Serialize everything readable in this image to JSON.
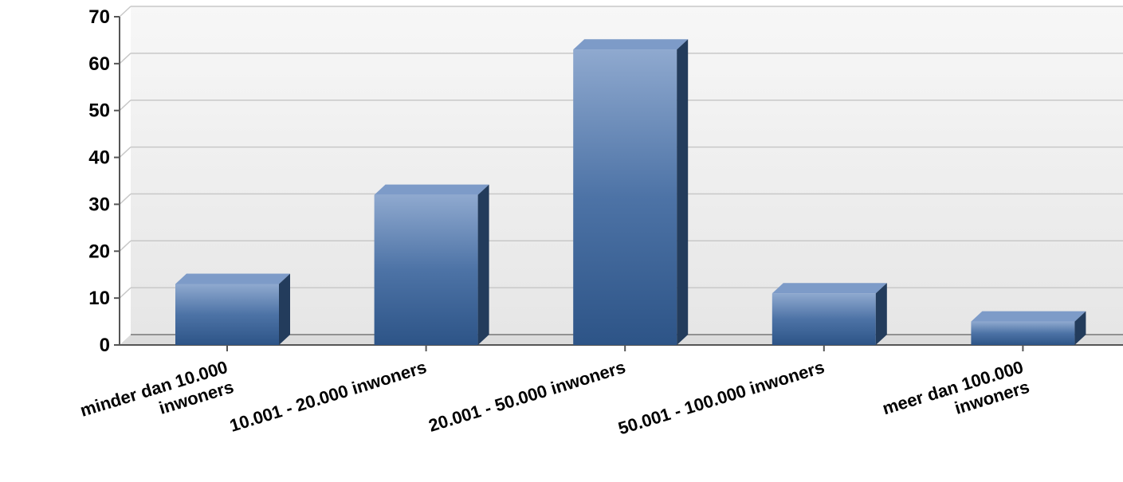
{
  "chart_data": {
    "type": "bar",
    "categories": [
      [
        "minder dan 10.000",
        "inwoners"
      ],
      [
        "10.001 - 20.000 inwoners"
      ],
      [
        "20.001 - 50.000 inwoners"
      ],
      [
        "50.001 - 100.000 inwoners"
      ],
      [
        "meer dan 100.000",
        "inwoners"
      ]
    ],
    "values": [
      13,
      32,
      63,
      11,
      5
    ],
    "yticks": [
      "0",
      "10",
      "20",
      "30",
      "40",
      "50",
      "60",
      "70"
    ],
    "ylim": [
      0,
      70
    ],
    "grid": true,
    "bar_style": "3d",
    "colors": {
      "bar_front_top": "#8FA9CF",
      "bar_front_bottom": "#2D5487",
      "bar_top": "#7D9BC8",
      "bar_side": "#233C5C",
      "grid": "#C8C8C8",
      "wall": "#EFEFEF"
    }
  }
}
